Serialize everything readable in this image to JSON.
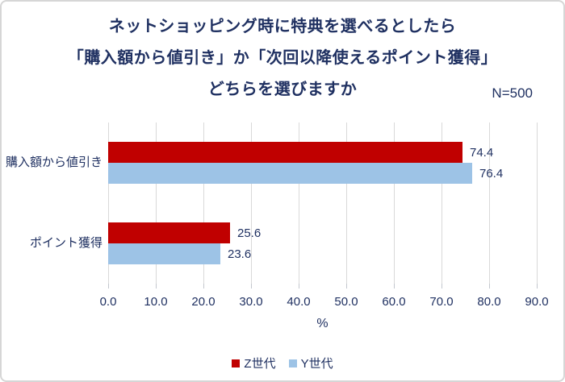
{
  "header": {
    "title_lines": [
      "ネットショッピング時に特典を選べるとしたら",
      "「購入額から値引き」か「次回以降使えるポイント獲得」",
      "どちらを選びますか"
    ],
    "sample_size": "N=500"
  },
  "chart_data": {
    "type": "bar",
    "orientation": "horizontal",
    "title": "ネットショッピング時に特典を選べるとしたら「購入額から値引き」か「次回以降使えるポイント獲得」どちらを選びますか",
    "categories": [
      "購入額から値引き",
      "ポイント獲得"
    ],
    "series": [
      {
        "name": "Z世代",
        "color": "#c00000",
        "values": [
          74.4,
          25.6
        ]
      },
      {
        "name": "Y世代",
        "color": "#9dc3e6",
        "values": [
          76.4,
          23.6
        ]
      }
    ],
    "xlabel": "%",
    "xlim": [
      0,
      90
    ],
    "xticks": [
      "0.0",
      "10.0",
      "20.0",
      "30.0",
      "40.0",
      "50.0",
      "60.0",
      "70.0",
      "80.0",
      "90.0"
    ],
    "grid": true,
    "legend_position": "bottom"
  },
  "colors": {
    "text": "#1f3061",
    "grid": "#d9d9d9",
    "tick": "#c3c7ce",
    "border": "#d6d6d6",
    "background": "#ffffff"
  }
}
